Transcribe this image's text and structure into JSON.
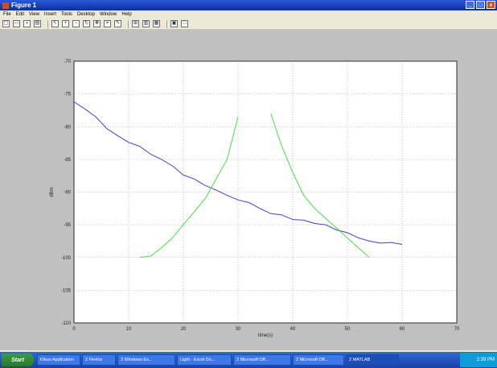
{
  "window": {
    "title": "Figure 1",
    "min": "_",
    "max": "□",
    "close": "x"
  },
  "menu": [
    "File",
    "Edit",
    "View",
    "Insert",
    "Tools",
    "Desktop",
    "Window",
    "Help"
  ],
  "toolbar": [
    {
      "icon": "new-icon",
      "glyph": "▢"
    },
    {
      "icon": "open-icon",
      "glyph": "▭"
    },
    {
      "icon": "save-icon",
      "glyph": "▪"
    },
    {
      "icon": "print-icon",
      "glyph": "▤"
    },
    {
      "icon": "arrow-icon",
      "glyph": "↖"
    },
    {
      "icon": "zoom-in-icon",
      "glyph": "+"
    },
    {
      "icon": "zoom-out-icon",
      "glyph": "−"
    },
    {
      "icon": "rotate-icon",
      "glyph": "↻"
    },
    {
      "icon": "pan-icon",
      "glyph": "✥"
    },
    {
      "icon": "data-cursor-icon",
      "glyph": "⌖"
    },
    {
      "icon": "brush-icon",
      "glyph": "✎"
    },
    {
      "icon": "link-icon",
      "glyph": "⊞"
    },
    {
      "icon": "colorbar-icon",
      "glyph": "▥"
    },
    {
      "icon": "legend-icon",
      "glyph": "▦"
    },
    {
      "icon": "hide-tools-icon",
      "glyph": "▣"
    },
    {
      "icon": "show-tools-icon",
      "glyph": "□"
    }
  ],
  "chart_data": {
    "type": "line",
    "xlim": [
      0,
      70
    ],
    "ylim": [
      -110,
      -70
    ],
    "xticks": [
      0,
      10,
      20,
      30,
      40,
      50,
      60,
      70
    ],
    "yticks": [
      -70,
      -75,
      -80,
      -85,
      -90,
      -95,
      -100,
      -105,
      -110
    ],
    "xtick_labels": [
      "0",
      "10",
      "20",
      "30",
      "40",
      "50",
      "60",
      "70"
    ],
    "ytick_labels": [
      "-70",
      "-75",
      "-80",
      "-85",
      "-90",
      "-95",
      "-100",
      "-105",
      "-110"
    ],
    "xlabel": "time(s)",
    "ylabel": "dBm",
    "grid": true,
    "series": [
      {
        "color": "#4040d0",
        "x": [
          0,
          2,
          4,
          6,
          8,
          10,
          12,
          14,
          16,
          18,
          20,
          22,
          24,
          26,
          28,
          30,
          32,
          34,
          36,
          38,
          40,
          42,
          44,
          46,
          48,
          50,
          52,
          54,
          56,
          58,
          60
        ],
        "y": [
          -76.2,
          -77.3,
          -78.5,
          -80.3,
          -81.4,
          -82.4,
          -83.0,
          -84.2,
          -85.0,
          -86.0,
          -87.4,
          -88.0,
          -89.0,
          -89.7,
          -90.5,
          -91.2,
          -91.6,
          -92.5,
          -93.3,
          -93.5,
          -94.2,
          -94.3,
          -94.8,
          -95.0,
          -95.8,
          -96.2,
          -97.0,
          -97.5,
          -97.8,
          -97.7,
          -98.0
        ]
      },
      {
        "color": "#40e040",
        "x": [
          12,
          14,
          16,
          18,
          20,
          22,
          24,
          26,
          28,
          30
        ],
        "y": [
          -100.0,
          -99.8,
          -98.5,
          -97.0,
          -95.0,
          -93.0,
          -91.0,
          -88.0,
          -85.0,
          -78.5
        ]
      },
      {
        "color": "#40e040",
        "x": [
          36,
          38,
          40,
          42,
          44,
          46,
          48,
          50,
          52,
          54
        ],
        "y": [
          -78.0,
          -83.0,
          -87.0,
          -90.5,
          -92.5,
          -94.0,
          -95.5,
          -97.0,
          -98.5,
          -100.0
        ]
      }
    ]
  },
  "taskbar": {
    "start": "Start",
    "items": [
      "Kikuo Application",
      "2 Firefox",
      "3 Windows Ex...",
      "Light - Excel Do...",
      "2 Microsoft Off...",
      "2 Microsoft Off...",
      "2 MATLAB"
    ],
    "tray_time": "2:39 PM"
  }
}
